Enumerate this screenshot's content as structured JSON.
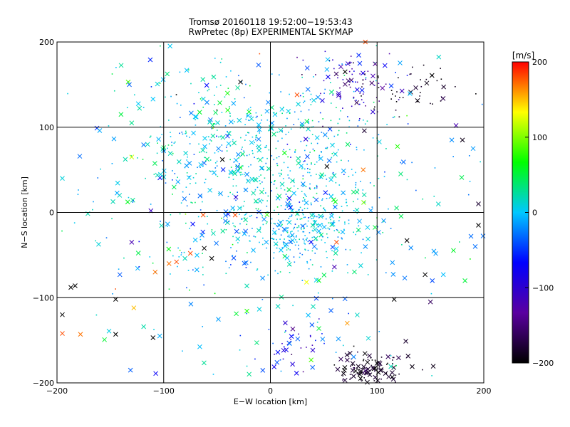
{
  "chart_data": {
    "type": "scatter",
    "title": "Tromsø 20160118 19:52:00−19:53:43",
    "subtitle": "RwPretec (8p) EXPERIMENTAL SKYMAP",
    "xlabel": "E−W location [km]",
    "ylabel": "N−S location [km]",
    "xlim": [
      -200,
      200
    ],
    "ylim": [
      -200,
      200
    ],
    "x_ticks": [
      -200,
      -100,
      0,
      100,
      200
    ],
    "y_ticks": [
      -200,
      -100,
      0,
      100,
      200
    ],
    "x_tick_labels": [
      "−200",
      "−100",
      "0",
      "100",
      "200"
    ],
    "y_tick_labels": [
      "−200",
      "−100",
      "0",
      "100",
      "200"
    ],
    "grid": true,
    "marker_styles": [
      "x",
      "dot"
    ],
    "colorbar": {
      "label": "[m/s]",
      "range": [
        -200,
        200
      ],
      "ticks": [
        -200,
        -100,
        0,
        100,
        200
      ],
      "tick_labels": [
        "−200",
        "−100",
        "0",
        "100",
        "200"
      ],
      "colors": [
        "#000000",
        "#5a00a0",
        "#0000ff",
        "#00c8ff",
        "#00ff00",
        "#ffff00",
        "#ff0000"
      ],
      "position": "right"
    },
    "clusters": [
      {
        "cx": -10,
        "cy": 60,
        "sx": 60,
        "sy": 50,
        "n": 560,
        "v": 5,
        "vs": 25,
        "xfrac": 0.15
      },
      {
        "cx": 25,
        "cy": -20,
        "sx": 25,
        "sy": 20,
        "n": 260,
        "v": 0,
        "vs": 20,
        "xfrac": 0.1
      },
      {
        "cx": 80,
        "cy": 150,
        "sx": 20,
        "sy": 20,
        "n": 90,
        "v": -120,
        "vs": 40,
        "xfrac": 0.25
      },
      {
        "cx": 140,
        "cy": 145,
        "sx": 20,
        "sy": 15,
        "n": 40,
        "v": -190,
        "vs": 10,
        "xfrac": 0.2
      },
      {
        "cx": 95,
        "cy": -185,
        "sx": 20,
        "sy": 10,
        "n": 120,
        "v": -185,
        "vs": 15,
        "xfrac": 0.5
      },
      {
        "cx": 20,
        "cy": -160,
        "sx": 15,
        "sy": 15,
        "n": 35,
        "v": -90,
        "vs": 40,
        "xfrac": 0.3
      },
      {
        "cx": 0,
        "cy": 0,
        "sx": 110,
        "sy": 100,
        "n": 450,
        "v": 0,
        "vs": 35,
        "xfrac": 0.55
      }
    ],
    "points": [
      {
        "x": -187,
        "y": -88,
        "v": -200,
        "m": "x"
      },
      {
        "x": -183,
        "y": -86,
        "v": -200,
        "m": "x"
      },
      {
        "x": -195,
        "y": -120,
        "v": -200,
        "m": "x"
      },
      {
        "x": -195,
        "y": -142,
        "v": 180,
        "m": "x"
      },
      {
        "x": -178,
        "y": -143,
        "v": 170,
        "m": "x"
      },
      {
        "x": -145,
        "y": -143,
        "v": -200,
        "m": "x"
      },
      {
        "x": -110,
        "y": -147,
        "v": -200,
        "m": "x"
      },
      {
        "x": -128,
        "y": -112,
        "v": 150,
        "m": "x"
      },
      {
        "x": -145,
        "y": -102,
        "v": -200,
        "m": "x"
      },
      {
        "x": -108,
        "y": -70,
        "v": 170,
        "m": "x"
      },
      {
        "x": -88,
        "y": -58,
        "v": 180,
        "m": "x"
      },
      {
        "x": -95,
        "y": -60,
        "v": 170,
        "m": "x"
      },
      {
        "x": -75,
        "y": -48,
        "v": 180,
        "m": "x"
      },
      {
        "x": -62,
        "y": -42,
        "v": -200,
        "m": "x"
      },
      {
        "x": -55,
        "y": -54,
        "v": -200,
        "m": "x"
      },
      {
        "x": -28,
        "y": 153,
        "v": -200,
        "m": "x"
      },
      {
        "x": 25,
        "y": 138,
        "v": 180,
        "m": "x"
      },
      {
        "x": 89,
        "y": 200,
        "v": 180,
        "m": "x"
      },
      {
        "x": 70,
        "y": 165,
        "v": -200,
        "m": "x"
      },
      {
        "x": 87,
        "y": 50,
        "v": 170,
        "m": "x"
      },
      {
        "x": 53,
        "y": 54,
        "v": -200,
        "m": "x"
      },
      {
        "x": -45,
        "y": 62,
        "v": -200,
        "m": "x"
      },
      {
        "x": 62,
        "y": -35,
        "v": 180,
        "m": "x"
      },
      {
        "x": 60,
        "y": -64,
        "v": -120,
        "m": "x"
      },
      {
        "x": 72,
        "y": -130,
        "v": 160,
        "m": "x"
      },
      {
        "x": 128,
        "y": -33,
        "v": -200,
        "m": "x"
      },
      {
        "x": 145,
        "y": -73,
        "v": -200,
        "m": "x"
      },
      {
        "x": 150,
        "y": -105,
        "v": -160,
        "m": "x"
      },
      {
        "x": 116,
        "y": -102,
        "v": -200,
        "m": "x"
      },
      {
        "x": 174,
        "y": 102,
        "v": -120,
        "m": "x"
      },
      {
        "x": 180,
        "y": 85,
        "v": -190,
        "m": "x"
      },
      {
        "x": 195,
        "y": -15,
        "v": -200,
        "m": "x"
      },
      {
        "x": 195,
        "y": 10,
        "v": -180,
        "m": "x"
      },
      {
        "x": -63,
        "y": -3,
        "v": 180,
        "m": "x"
      },
      {
        "x": -33,
        "y": -3,
        "v": 180,
        "m": "x"
      },
      {
        "x": -130,
        "y": -35,
        "v": -120,
        "m": "x"
      },
      {
        "x": -112,
        "y": 2,
        "v": -110,
        "m": "x"
      },
      {
        "x": -10,
        "y": 186,
        "v": 180,
        "m": "dot"
      },
      {
        "x": 138,
        "y": 130,
        "v": -200,
        "m": "dot"
      },
      {
        "x": -145,
        "y": -90,
        "v": 180,
        "m": "dot"
      },
      {
        "x": -50,
        "y": 120,
        "v": -200,
        "m": "dot"
      },
      {
        "x": -88,
        "y": 138,
        "v": -200,
        "m": "dot"
      },
      {
        "x": -130,
        "y": 65,
        "v": 120,
        "m": "x"
      },
      {
        "x": -140,
        "y": 115,
        "v": 50,
        "m": "x"
      },
      {
        "x": -160,
        "y": 96,
        "v": -10,
        "m": "x"
      },
      {
        "x": -110,
        "y": 133,
        "v": 0,
        "m": "x"
      },
      {
        "x": -130,
        "y": 105,
        "v": 30,
        "m": "x"
      },
      {
        "x": -40,
        "y": 120,
        "v": 70,
        "m": "x"
      },
      {
        "x": -20,
        "y": 118,
        "v": 60,
        "m": "x"
      },
      {
        "x": 170,
        "y": 85,
        "v": -20,
        "m": "x"
      },
      {
        "x": 190,
        "y": 75,
        "v": -15,
        "m": "x"
      },
      {
        "x": 188,
        "y": -28,
        "v": -30,
        "m": "x"
      },
      {
        "x": 192,
        "y": -40,
        "v": -30,
        "m": "x"
      },
      {
        "x": -195,
        "y": 40,
        "v": 10,
        "m": "x"
      }
    ]
  }
}
